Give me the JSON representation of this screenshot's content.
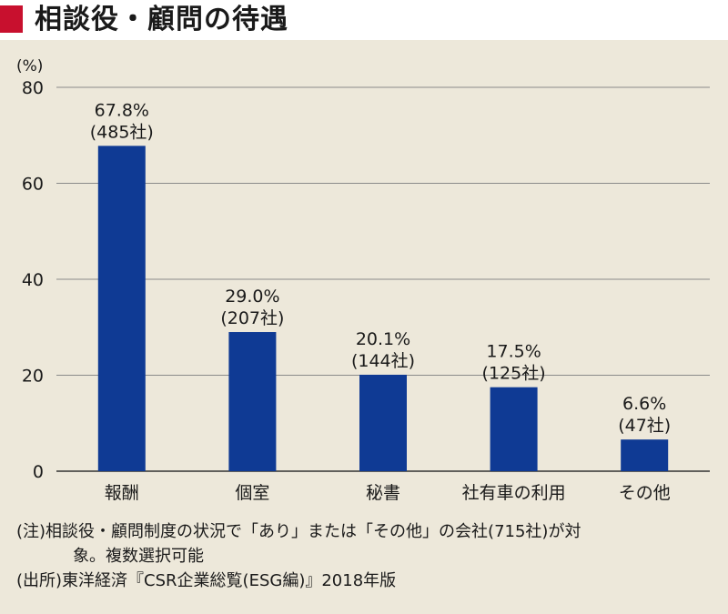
{
  "header": {
    "title": "相談役・顧問の待遇",
    "accent_color": "#c8102e"
  },
  "chart_data": {
    "type": "bar",
    "title": "",
    "ylabel": "(%)",
    "xlabel": "",
    "ylim": [
      0,
      80
    ],
    "yticks": [
      0,
      20,
      40,
      60,
      80
    ],
    "ytick_labels": [
      "0",
      "20",
      "40",
      "60",
      "80"
    ],
    "grid": true,
    "bar_color": "#0f3a94",
    "categories": [
      "報酬",
      "個室",
      "秘書",
      "社有車の利用",
      "その他"
    ],
    "values": [
      67.8,
      29.0,
      20.1,
      17.5,
      6.6
    ],
    "value_labels": [
      "67.8%",
      "29.0%",
      "20.1%",
      "17.5%",
      "6.6%"
    ],
    "count_labels": [
      "(485社)",
      "(207社)",
      "(144社)",
      "(125社)",
      "(47社)"
    ]
  },
  "notes": {
    "note_line1": "(注)相談役・顧問制度の状況で「あり」または「その他」の会社(715社)が対",
    "note_line2": "象。複数選択可能",
    "source": "(出所)東洋経済『CSR企業総覧(ESG編)』2018年版"
  }
}
